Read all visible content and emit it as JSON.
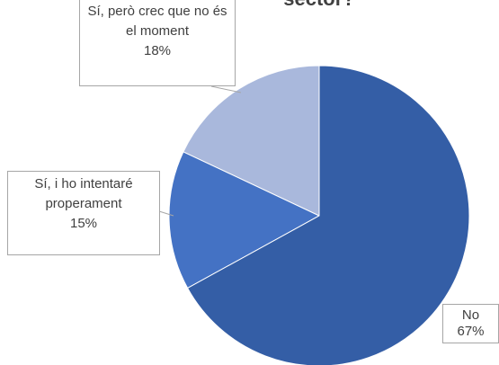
{
  "chart_data": {
    "type": "pie",
    "title": "sector?",
    "categories": [
      "No",
      "Sí, i ho intentaré properament",
      "Sí, però crec que no és el moment"
    ],
    "values": [
      67,
      15,
      18
    ],
    "value_labels": [
      "67%",
      "15%",
      "18%"
    ],
    "colors": [
      "#345ea6",
      "#4472c4",
      "#a9b8dc"
    ]
  }
}
